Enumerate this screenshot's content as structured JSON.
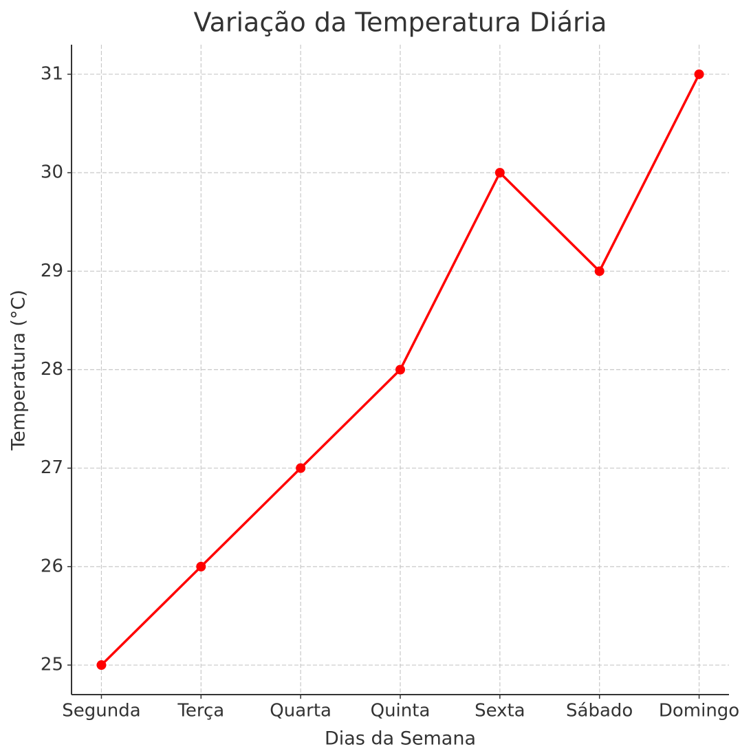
{
  "chart_data": {
    "type": "line",
    "title": "Variação da Temperatura Diária",
    "x_label": "Dias da Semana",
    "y_label": "Temperatura (°C)",
    "categories": [
      "Segunda",
      "Terça",
      "Quarta",
      "Quinta",
      "Sexta",
      "Sábado",
      "Domingo"
    ],
    "values": [
      25,
      26,
      27,
      28,
      30,
      29,
      31
    ],
    "color": "#ff0000",
    "ylim": [
      24.7,
      31.3
    ],
    "yticks": [
      25,
      26,
      27,
      28,
      29,
      30,
      31
    ],
    "grid": true
  }
}
